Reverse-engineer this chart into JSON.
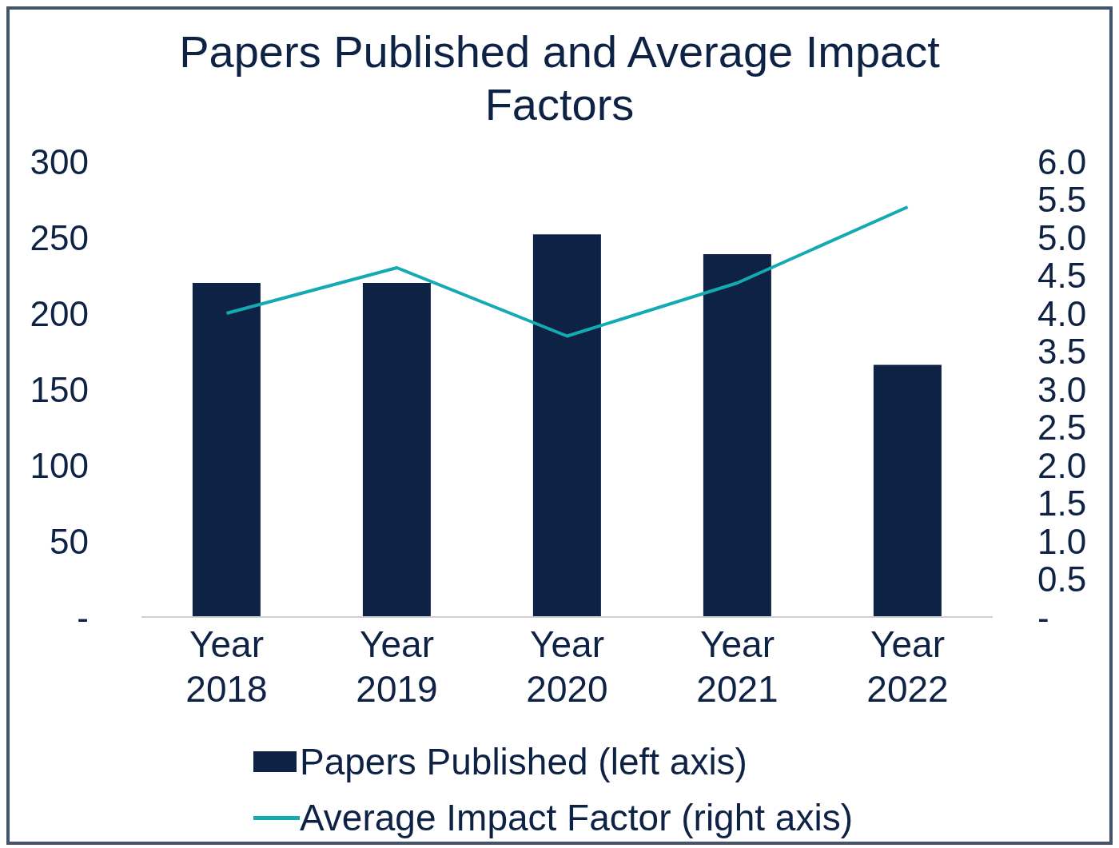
{
  "chart_data": {
    "type": "bar",
    "title": "Papers Published and Average Impact Factors",
    "categories": [
      "Year 2018",
      "Year 2019",
      "Year 2020",
      "Year 2021",
      "Year 2022"
    ],
    "series": [
      {
        "name": "Papers Published (left axis)",
        "color": "#0e2245",
        "values": [
          220,
          220,
          252,
          239,
          166
        ]
      },
      {
        "name": "Average Impact Factor (right axis)",
        "type": "line",
        "axis": "y2",
        "color": "#13aab3",
        "values": [
          4.0,
          4.6,
          3.7,
          4.4,
          5.4
        ]
      }
    ],
    "ylim": [
      0,
      300
    ],
    "yticks": [
      {
        "value": 0,
        "label": "-"
      },
      50,
      100,
      150,
      200,
      250,
      300
    ],
    "y2lim": [
      0,
      6
    ],
    "y2ticks": [
      {
        "value": 0,
        "label": "-"
      },
      {
        "value": 0.5,
        "label": "0.5"
      },
      {
        "value": 1,
        "label": "1.0"
      },
      {
        "value": 1.5,
        "label": "1.5"
      },
      {
        "value": 2,
        "label": "2.0"
      },
      {
        "value": 2.5,
        "label": "2.5"
      },
      {
        "value": 3,
        "label": "3.0"
      },
      {
        "value": 3.5,
        "label": "3.5"
      },
      {
        "value": 4,
        "label": "4.0"
      },
      {
        "value": 4.5,
        "label": "4.5"
      },
      {
        "value": 5,
        "label": "5.0"
      },
      {
        "value": 5.5,
        "label": "5.5"
      },
      {
        "value": 6,
        "label": "6.0"
      }
    ],
    "grid": false,
    "legend": "bottom",
    "line_style": "solid",
    "marker": "none"
  }
}
